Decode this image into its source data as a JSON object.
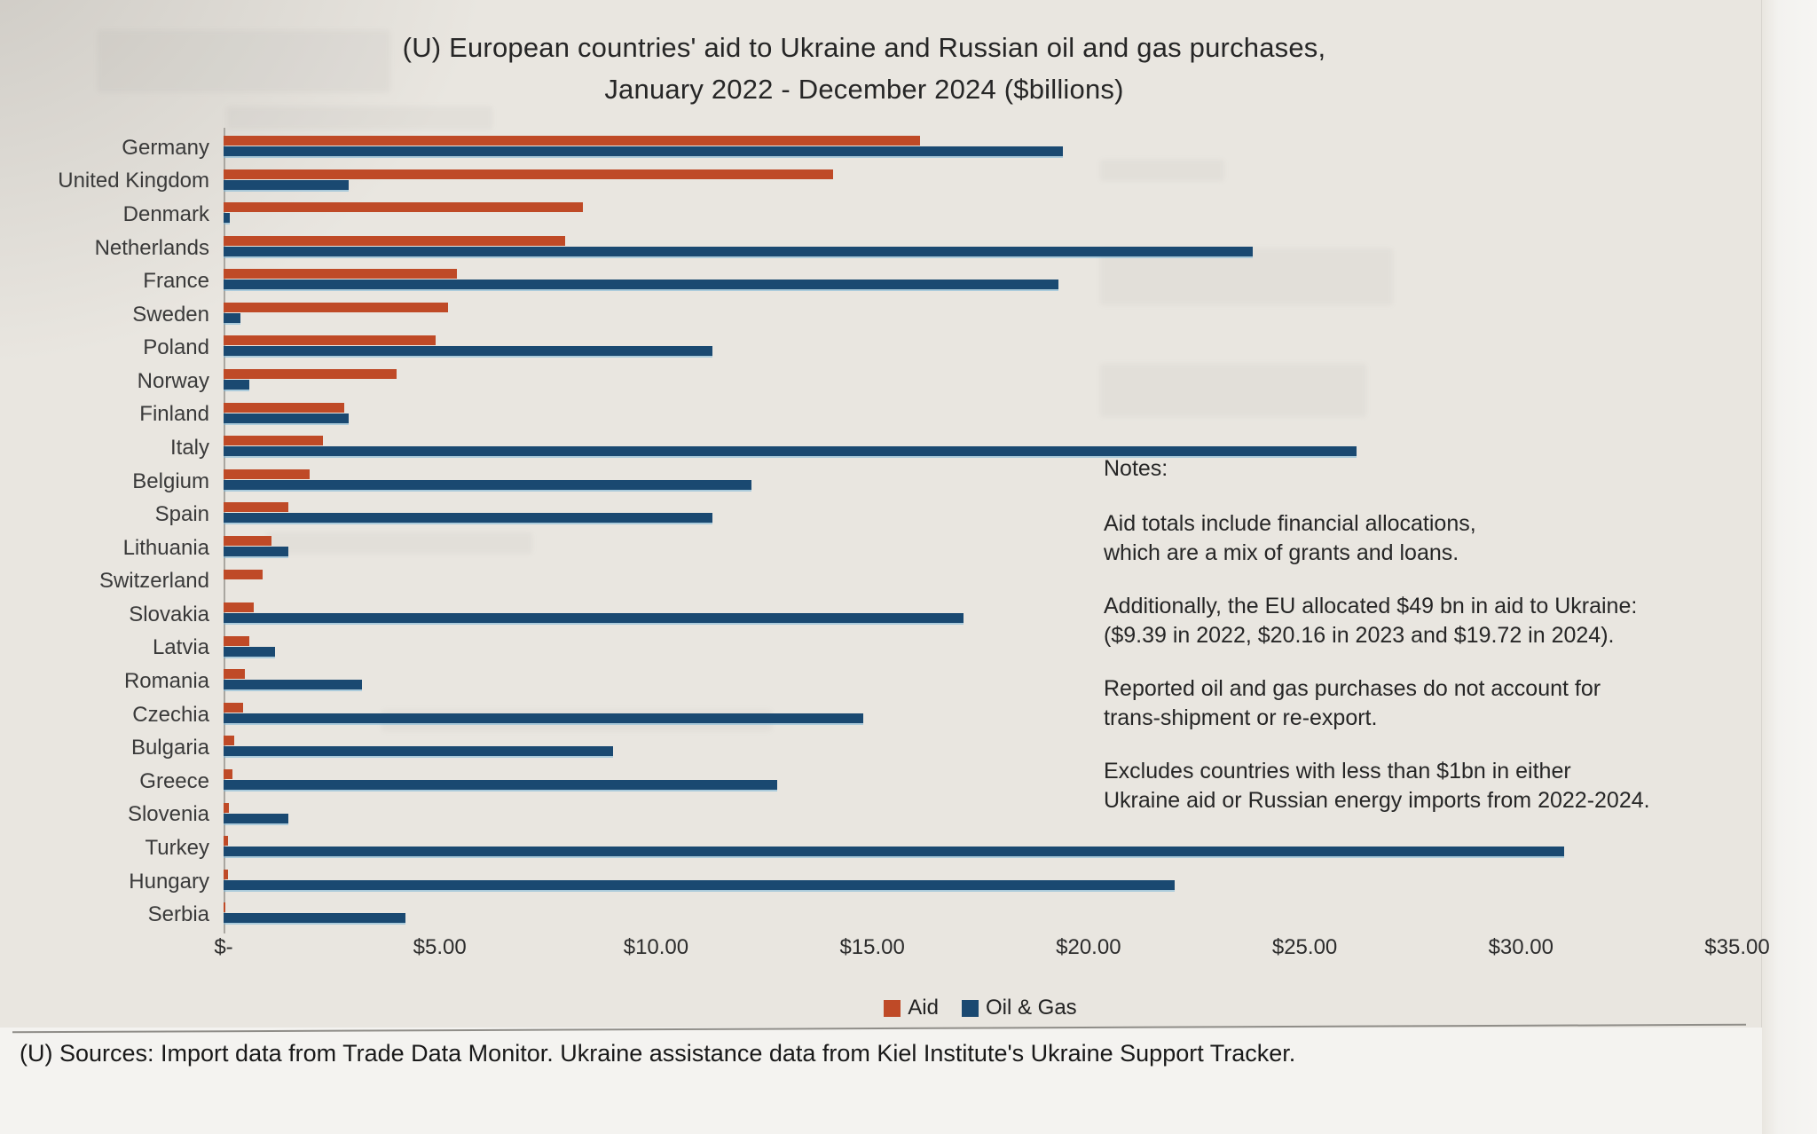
{
  "title": {
    "line1": "(U) European countries' aid to Ukraine and Russian oil and gas purchases,",
    "line2": "January 2022 - December 2024 ($billions)"
  },
  "chart_data": {
    "type": "bar",
    "orientation": "horizontal",
    "title": "(U) European countries' aid to Ukraine and Russian oil and gas purchases, January 2022 - December 2024 ($billions)",
    "categories": [
      "Germany",
      "United Kingdom",
      "Denmark",
      "Netherlands",
      "France",
      "Sweden",
      "Poland",
      "Norway",
      "Finland",
      "Italy",
      "Belgium",
      "Spain",
      "Lithuania",
      "Switzerland",
      "Slovakia",
      "Latvia",
      "Romania",
      "Czechia",
      "Bulgaria",
      "Greece",
      "Slovenia",
      "Turkey",
      "Hungary",
      "Serbia"
    ],
    "series": [
      {
        "name": "Aid",
        "color": "#bf4a27",
        "values": [
          16.1,
          14.1,
          8.3,
          7.9,
          5.4,
          5.2,
          4.9,
          4.0,
          2.8,
          2.3,
          2.0,
          1.5,
          1.1,
          0.9,
          0.7,
          0.6,
          0.5,
          0.45,
          0.25,
          0.2,
          0.12,
          0.1,
          0.1,
          0.05
        ]
      },
      {
        "name": "Oil & Gas",
        "color": "#1a4971",
        "values": [
          19.4,
          2.9,
          0.15,
          23.8,
          19.3,
          0.4,
          11.3,
          0.6,
          2.9,
          26.2,
          12.2,
          11.3,
          1.5,
          0,
          17.1,
          1.2,
          3.2,
          14.8,
          9.0,
          12.8,
          1.5,
          31.0,
          22.0,
          4.2
        ]
      }
    ],
    "xlim": [
      0,
      35
    ],
    "x_tick_values": [
      0,
      5,
      10,
      15,
      20,
      25,
      30,
      35
    ],
    "x_tick_labels": [
      "$-",
      "$5.00",
      "$10.00",
      "$15.00",
      "$20.00",
      "$25.00",
      "$30.00",
      "$35.00"
    ],
    "grid": false,
    "legend_position": "bottom"
  },
  "notes": {
    "heading": "Notes:",
    "blocks": [
      [
        "Aid totals include financial allocations,",
        "which are a mix of grants and loans."
      ],
      [
        "Additionally, the EU allocated $49 bn in aid to Ukraine:",
        "($9.39 in 2022, $20.16 in 2023 and $19.72 in 2024)."
      ],
      [
        "Reported oil and gas purchases do not account for",
        "trans-shipment or re-export."
      ],
      [
        "Excludes countries with less than $1bn in either",
        "Ukraine aid or Russian energy imports from 2022-2024."
      ]
    ]
  },
  "source_line": "(U) Sources:  Import data from Trade Data Monitor.  Ukraine assistance data from Kiel Institute's Ukraine Support Tracker."
}
